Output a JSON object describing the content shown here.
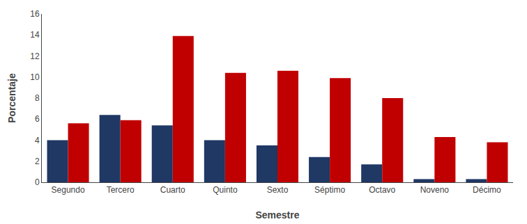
{
  "chart_data": {
    "type": "bar",
    "xlabel": "Semestre",
    "ylabel": "Porcentaje",
    "categories": [
      "Segundo",
      "Tercero",
      "Cuarto",
      "Quinto",
      "Sexto",
      "Séptimo",
      "Octavo",
      "Noveno",
      "Décimo"
    ],
    "series": [
      {
        "color": "#1F3864",
        "values": [
          4.0,
          6.4,
          5.4,
          4.0,
          3.5,
          2.4,
          1.7,
          0.3,
          0.3
        ]
      },
      {
        "color": "#C00000",
        "values": [
          5.6,
          5.9,
          13.9,
          10.4,
          10.6,
          9.9,
          8.0,
          4.3,
          3.8
        ]
      }
    ],
    "ylim": [
      0,
      16
    ],
    "yticks": [
      0,
      2,
      4,
      6,
      8,
      10,
      12,
      14,
      16
    ],
    "grid": false
  }
}
